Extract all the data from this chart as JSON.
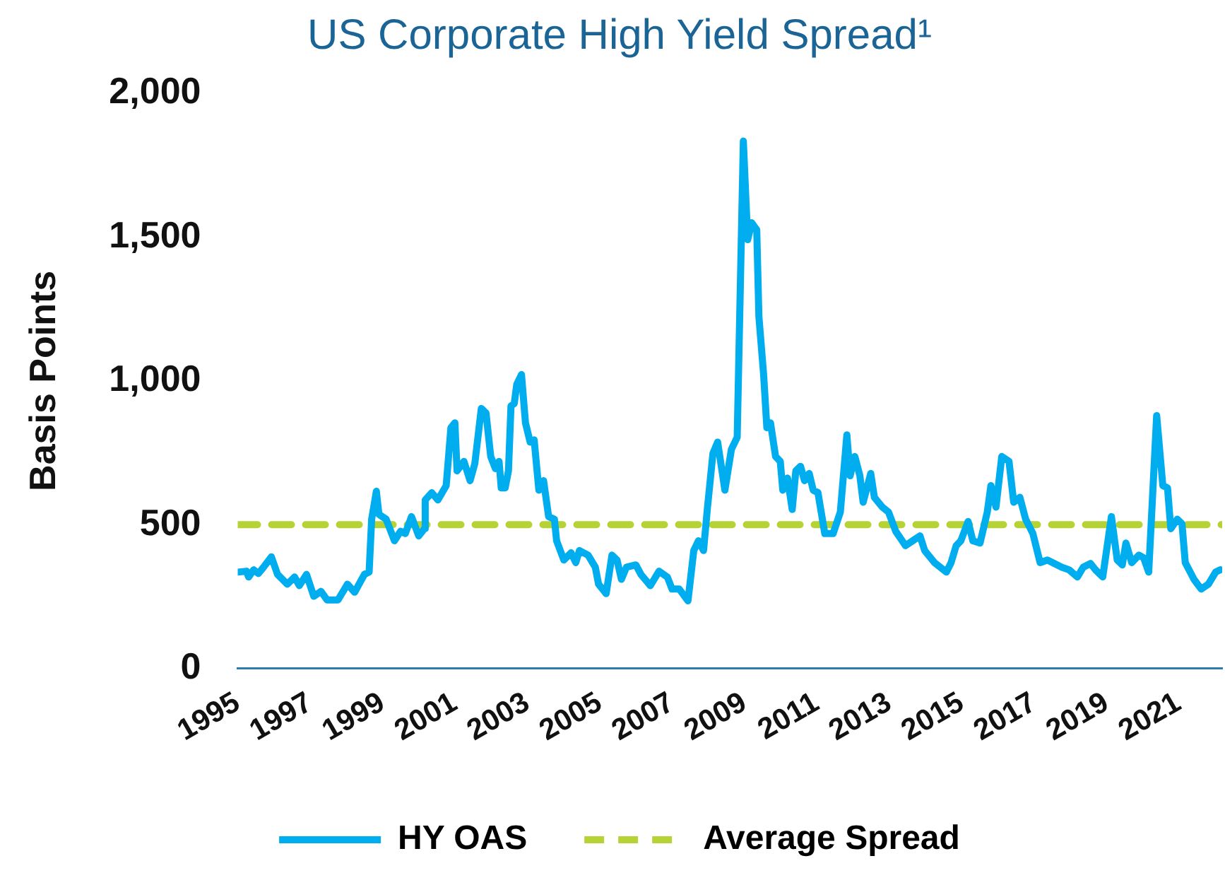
{
  "chart_data": {
    "type": "line",
    "title": "US Corporate High Yield Spread¹",
    "ylabel": "Basis Points",
    "xlim": [
      1995,
      2022.2
    ],
    "xticks": [
      1995,
      1997,
      1999,
      2001,
      2003,
      2005,
      2007,
      2009,
      2011,
      2013,
      2015,
      2017,
      2019,
      2021
    ],
    "ylim": [
      0,
      2000
    ],
    "yticks": [
      0,
      500,
      {
        "value": 1000,
        "label": "1,000"
      },
      {
        "value": 1500,
        "label": "1,500"
      },
      {
        "value": 2000,
        "label": "2,000"
      }
    ],
    "grid": false,
    "legend": "bottom",
    "marker": "none",
    "ref_lines": [
      {
        "axis": "y",
        "value": 500,
        "label": "Average Spread",
        "color": "#b5d334",
        "line_style": "dashed"
      }
    ],
    "series": [
      {
        "name": "HY OAS",
        "color": "#00aeef",
        "line_style": "solid",
        "x": [
          1995.0,
          1995.24,
          1995.3,
          1995.44,
          1995.57,
          1995.7,
          1995.93,
          1996.1,
          1996.37,
          1996.57,
          1996.7,
          1996.9,
          1997.1,
          1997.3,
          1997.47,
          1997.77,
          1998.03,
          1998.23,
          1998.5,
          1998.63,
          1998.7,
          1998.83,
          1998.9,
          1999.1,
          1999.33,
          1999.5,
          1999.63,
          1999.8,
          2000.0,
          2000.16,
          2000.18,
          2000.36,
          2000.53,
          2000.76,
          2000.89,
          2001.0,
          2001.06,
          2001.25,
          2001.42,
          2001.55,
          2001.73,
          2001.86,
          2001.99,
          2002.12,
          2002.22,
          2002.28,
          2002.39,
          2002.48,
          2002.55,
          2002.64,
          2002.71,
          2002.84,
          2002.95,
          2003.08,
          2003.19,
          2003.32,
          2003.45,
          2003.59,
          2003.75,
          2003.81,
          2004.01,
          2004.21,
          2004.34,
          2004.44,
          2004.68,
          2004.88,
          2004.97,
          2005.18,
          2005.34,
          2005.48,
          2005.6,
          2005.74,
          2006.0,
          2006.14,
          2006.4,
          2006.64,
          2006.87,
          2007.0,
          2007.2,
          2007.44,
          2007.6,
          2007.73,
          2007.87,
          2007.98,
          2008.13,
          2008.26,
          2008.46,
          2008.64,
          2008.8,
          2008.97,
          2009.09,
          2009.2,
          2009.34,
          2009.4,
          2009.53,
          2009.62,
          2009.72,
          2009.86,
          2009.99,
          2010.06,
          2010.19,
          2010.32,
          2010.42,
          2010.55,
          2010.66,
          2010.79,
          2010.9,
          2011.03,
          2011.22,
          2011.45,
          2011.65,
          2011.83,
          2011.92,
          2012.05,
          2012.19,
          2012.28,
          2012.49,
          2012.59,
          2012.81,
          2012.98,
          2013.18,
          2013.45,
          2013.65,
          2013.85,
          2013.98,
          2014.25,
          2014.58,
          2014.71,
          2014.85,
          2014.98,
          2015.18,
          2015.31,
          2015.51,
          2015.71,
          2015.81,
          2015.95,
          2016.11,
          2016.31,
          2016.44,
          2016.61,
          2016.77,
          2016.97,
          2017.17,
          2017.37,
          2017.77,
          2017.97,
          2018.2,
          2018.36,
          2018.56,
          2018.7,
          2018.9,
          2019.14,
          2019.3,
          2019.44,
          2019.54,
          2019.7,
          2019.9,
          2020.03,
          2020.17,
          2020.39,
          2020.56,
          2020.69,
          2020.78,
          2020.96,
          2021.09,
          2021.18,
          2021.42,
          2021.62,
          2021.82,
          2022.02,
          2022.15
        ],
        "values": [
          335,
          338,
          318,
          343,
          330,
          350,
          388,
          327,
          293,
          318,
          288,
          327,
          251,
          268,
          238,
          238,
          293,
          265,
          327,
          335,
          519,
          616,
          536,
          519,
          444,
          477,
          469,
          528,
          461,
          486,
          586,
          611,
          586,
          636,
          837,
          854,
          687,
          720,
          653,
          712,
          904,
          888,
          737,
          695,
          720,
          628,
          628,
          687,
          913,
          921,
          988,
          1022,
          854,
          787,
          795,
          620,
          653,
          528,
          519,
          444,
          377,
          402,
          368,
          410,
          394,
          352,
          293,
          260,
          394,
          377,
          310,
          352,
          360,
          327,
          288,
          338,
          318,
          276,
          276,
          235,
          410,
          444,
          410,
          561,
          748,
          787,
          620,
          762,
          804,
          1834,
          1491,
          1550,
          1525,
          1223,
          1022,
          837,
          854,
          737,
          720,
          620,
          662,
          553,
          687,
          703,
          653,
          678,
          620,
          612,
          469,
          469,
          544,
          812,
          670,
          737,
          670,
          578,
          678,
          595,
          561,
          544,
          477,
          427,
          444,
          461,
          410,
          368,
          335,
          368,
          427,
          444,
          511,
          444,
          436,
          544,
          636,
          561,
          737,
          720,
          578,
          595,
          519,
          469,
          368,
          377,
          352,
          343,
          318,
          352,
          365,
          343,
          318,
          528,
          377,
          360,
          436,
          368,
          394,
          385,
          335,
          879,
          636,
          628,
          486,
          519,
          503,
          368,
          310,
          276,
          293,
          335,
          343
        ]
      }
    ]
  }
}
